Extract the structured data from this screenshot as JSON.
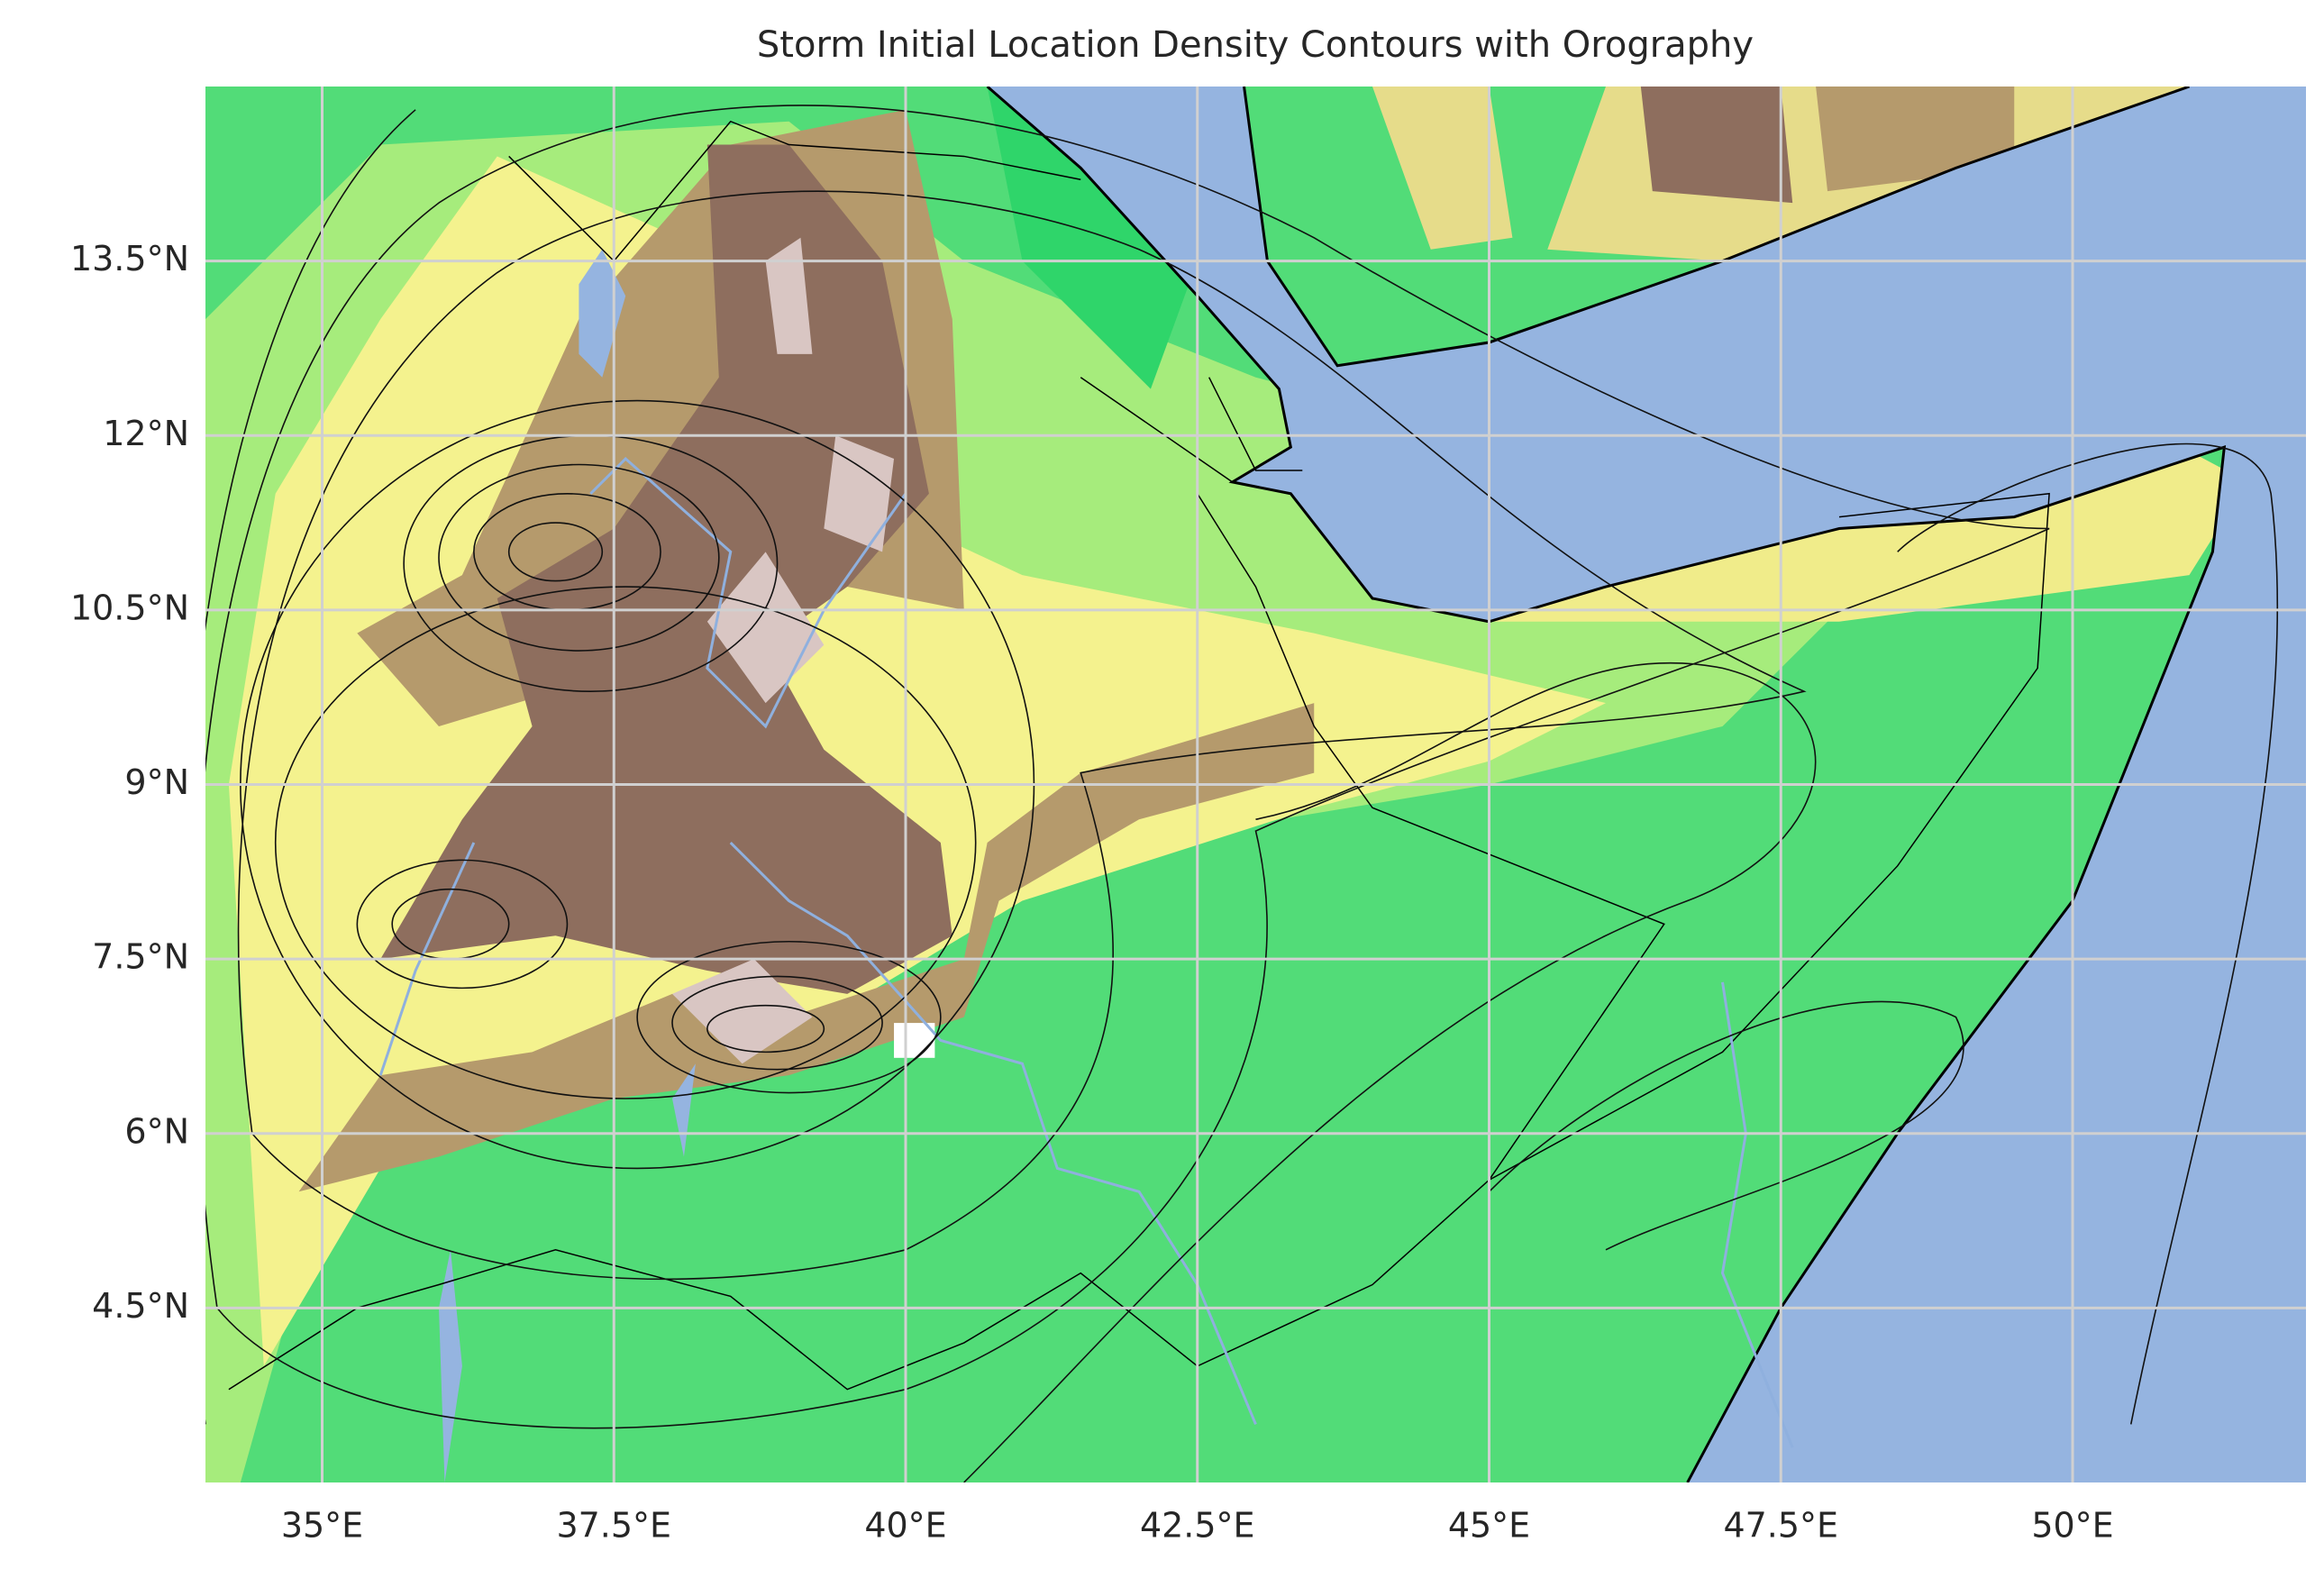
{
  "chart_data": {
    "type": "map",
    "title": "Storm Initial Location Density Contours with Orography",
    "xlim": [
      34,
      52
    ],
    "ylim": [
      3,
      15
    ],
    "xticks": [
      {
        "value": 35,
        "label": "35°E"
      },
      {
        "value": 37.5,
        "label": "37.5°E"
      },
      {
        "value": 40,
        "label": "40°E"
      },
      {
        "value": 42.5,
        "label": "42.5°E"
      },
      {
        "value": 45,
        "label": "45°E"
      },
      {
        "value": 47.5,
        "label": "47.5°E"
      },
      {
        "value": 50,
        "label": "50°E"
      }
    ],
    "yticks": [
      {
        "value": 4.5,
        "label": "4.5°N"
      },
      {
        "value": 6,
        "label": "6°N"
      },
      {
        "value": 7.5,
        "label": "7.5°N"
      },
      {
        "value": 9,
        "label": "9°N"
      },
      {
        "value": 10.5,
        "label": "10.5°N"
      },
      {
        "value": 12,
        "label": "12°N"
      },
      {
        "value": 13.5,
        "label": "13.5°N"
      }
    ],
    "grid": true
  }
}
